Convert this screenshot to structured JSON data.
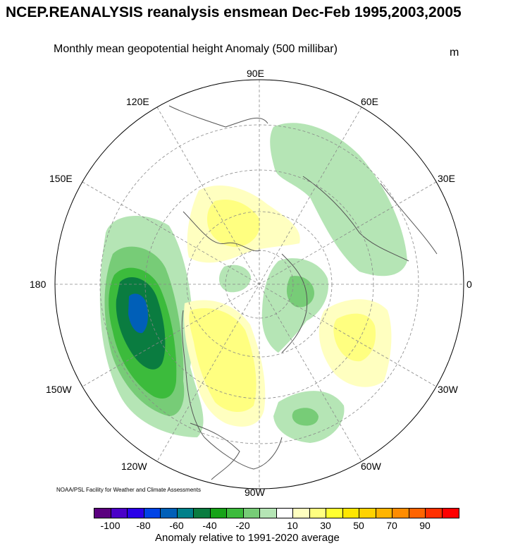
{
  "header": {
    "title": "NCEP.REANALYSIS reanalysis ensmean Dec-Feb 1995,2003,2005",
    "subtitle": "Monthly mean geopotential height Anomaly (500 millibar)",
    "units": "m"
  },
  "map": {
    "projection": "north-polar-stereographic",
    "longitude_labels": {
      "top": "90E",
      "upper_left": "120E",
      "upper_right": "60E",
      "left_upper": "150E",
      "right_upper": "30E",
      "left": "180",
      "right": "0",
      "left_lower": "150W",
      "right_lower": "30W",
      "lower_left": "120W",
      "lower_right": "60W",
      "bottom": "90W"
    },
    "anomaly_features": [
      {
        "region": "North Pacific (Gulf of Alaska)",
        "sign": "negative",
        "min_level": -60
      },
      {
        "region": "Western Russia / Scandinavia",
        "sign": "negative",
        "min_level": -20
      },
      {
        "region": "Greenland / Baffin",
        "sign": "negative",
        "min_level": -30
      },
      {
        "region": "Central Arctic",
        "sign": "negative",
        "min_level": -20
      },
      {
        "region": "Western North Atlantic",
        "sign": "negative",
        "min_level": -30
      },
      {
        "region": "Western / Central Canada",
        "sign": "positive",
        "max_level": 30
      },
      {
        "region": "Siberia / Laptev Sea",
        "sign": "positive",
        "max_level": 30
      },
      {
        "region": "Eastern North Atlantic",
        "sign": "positive",
        "max_level": 40
      }
    ]
  },
  "colorbar": {
    "colors": [
      "#5b007f",
      "#4b00c8",
      "#2a00e8",
      "#0043e6",
      "#005fb8",
      "#00808a",
      "#0a7c40",
      "#17a318",
      "#3cbb3c",
      "#77cc77",
      "#b5e5b5",
      "#ffffff",
      "#ffffc0",
      "#ffff80",
      "#ffff30",
      "#ffe600",
      "#ffd200",
      "#ffb400",
      "#ff8c00",
      "#ff6400",
      "#ff3000",
      "#ff0000"
    ],
    "tick_labels": [
      "-100",
      "-80",
      "-60",
      "-40",
      "-20",
      "10",
      "30",
      "50",
      "70",
      "90"
    ],
    "title": "Anomaly relative to 1991-2020 average"
  },
  "footer": {
    "credit": "NOAA/PSL Facility for Weather and Climate Assessments"
  }
}
